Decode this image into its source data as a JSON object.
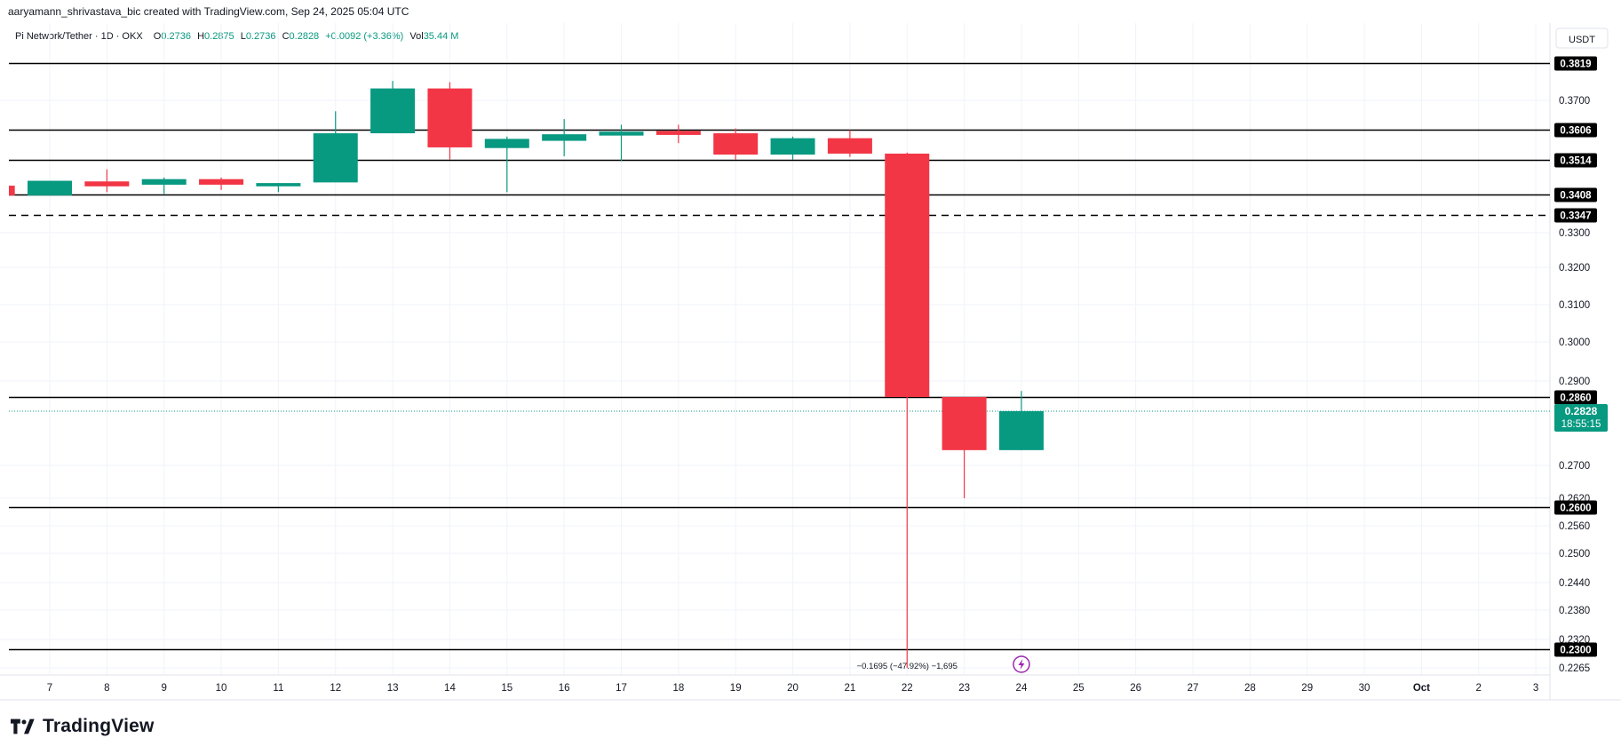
{
  "attribution": "aaryamann_shrivastava_bic created with TradingView.com, Sep 24, 2025 05:04 UTC",
  "legend": {
    "symbol": "Pi Network/Tether · 1D · OKX",
    "o_label": "O",
    "o_value": "0.2736",
    "h_label": "H",
    "h_value": "0.2875",
    "l_label": "L",
    "l_value": "0.2736",
    "c_label": "C",
    "c_value": "0.2828",
    "change": "+0.0092 (+3.36%)",
    "vol_label": "Vol",
    "vol_value": "35.44 M"
  },
  "logo_text": "TradingView",
  "currency": "USDT",
  "countdown": "18:55:15",
  "measure_label": "−0.1695 (−47.92%) −1,695",
  "colors": {
    "up": "#089981",
    "down": "#f23645",
    "level_line": "#000000",
    "grid": "#f0f3fa",
    "text": "#131722",
    "lightning": "#9c27b0"
  },
  "chart_data": {
    "type": "candlestick",
    "x_ticks": [
      "7",
      "8",
      "9",
      "10",
      "11",
      "12",
      "13",
      "14",
      "15",
      "16",
      "17",
      "18",
      "19",
      "20",
      "21",
      "22",
      "23",
      "24",
      "25",
      "26",
      "27",
      "28",
      "29",
      "30",
      "Oct",
      "2",
      "3"
    ],
    "y_ticks": [
      "0.3700",
      "0.3300",
      "0.3200",
      "0.3100",
      "0.3000",
      "0.2900",
      "0.2700",
      "0.2620",
      "0.2560",
      "0.2500",
      "0.2440",
      "0.2380",
      "0.2320",
      "0.2265"
    ],
    "candles": [
      {
        "x": "6",
        "open": 0.3435,
        "high": 0.3445,
        "low": 0.3405,
        "close": 0.3405
      },
      {
        "x": "7",
        "open": 0.3405,
        "high": 0.345,
        "low": 0.3405,
        "close": 0.345
      },
      {
        "x": "8",
        "open": 0.3448,
        "high": 0.3485,
        "low": 0.3415,
        "close": 0.3433
      },
      {
        "x": "9",
        "open": 0.3438,
        "high": 0.346,
        "low": 0.341,
        "close": 0.3455
      },
      {
        "x": "10",
        "open": 0.3455,
        "high": 0.346,
        "low": 0.3422,
        "close": 0.3438
      },
      {
        "x": "11",
        "open": 0.3433,
        "high": 0.3443,
        "low": 0.3415,
        "close": 0.3443
      },
      {
        "x": "12",
        "open": 0.3445,
        "high": 0.3665,
        "low": 0.3445,
        "close": 0.3595
      },
      {
        "x": "13",
        "open": 0.3595,
        "high": 0.3762,
        "low": 0.3595,
        "close": 0.3738
      },
      {
        "x": "14",
        "open": 0.3738,
        "high": 0.3758,
        "low": 0.3515,
        "close": 0.3552
      },
      {
        "x": "15",
        "open": 0.355,
        "high": 0.3585,
        "low": 0.3415,
        "close": 0.3578
      },
      {
        "x": "16",
        "open": 0.3572,
        "high": 0.364,
        "low": 0.3525,
        "close": 0.3592
      },
      {
        "x": "17",
        "open": 0.3588,
        "high": 0.3622,
        "low": 0.351,
        "close": 0.36
      },
      {
        "x": "18",
        "open": 0.3602,
        "high": 0.3622,
        "low": 0.3565,
        "close": 0.359
      },
      {
        "x": "19",
        "open": 0.3595,
        "high": 0.361,
        "low": 0.3515,
        "close": 0.353
      },
      {
        "x": "20",
        "open": 0.353,
        "high": 0.3585,
        "low": 0.3515,
        "close": 0.358
      },
      {
        "x": "21",
        "open": 0.358,
        "high": 0.3605,
        "low": 0.3523,
        "close": 0.3533
      },
      {
        "x": "22",
        "open": 0.3533,
        "high": 0.3536,
        "low": 0.2265,
        "close": 0.286
      },
      {
        "x": "23",
        "open": 0.286,
        "high": 0.286,
        "low": 0.262,
        "close": 0.2736
      },
      {
        "x": "24",
        "open": 0.2736,
        "high": 0.2875,
        "low": 0.2736,
        "close": 0.2828
      }
    ],
    "levels": [
      {
        "value": 0.3819,
        "label": "0.3819",
        "style": "solid"
      },
      {
        "value": 0.3606,
        "label": "0.3606",
        "style": "solid"
      },
      {
        "value": 0.3514,
        "label": "0.3514",
        "style": "solid"
      },
      {
        "value": 0.3408,
        "label": "0.3408",
        "style": "solid"
      },
      {
        "value": 0.3347,
        "label": "0.3347",
        "style": "dashed"
      },
      {
        "value": 0.286,
        "label": "0.2860",
        "style": "solid"
      },
      {
        "value": 0.26,
        "label": "0.2600",
        "style": "solid"
      },
      {
        "value": 0.23,
        "label": "0.2300",
        "style": "solid"
      }
    ],
    "last_price": {
      "value": 0.2828,
      "label": "0.2828"
    },
    "y_axis_side": "right",
    "grid": true
  }
}
